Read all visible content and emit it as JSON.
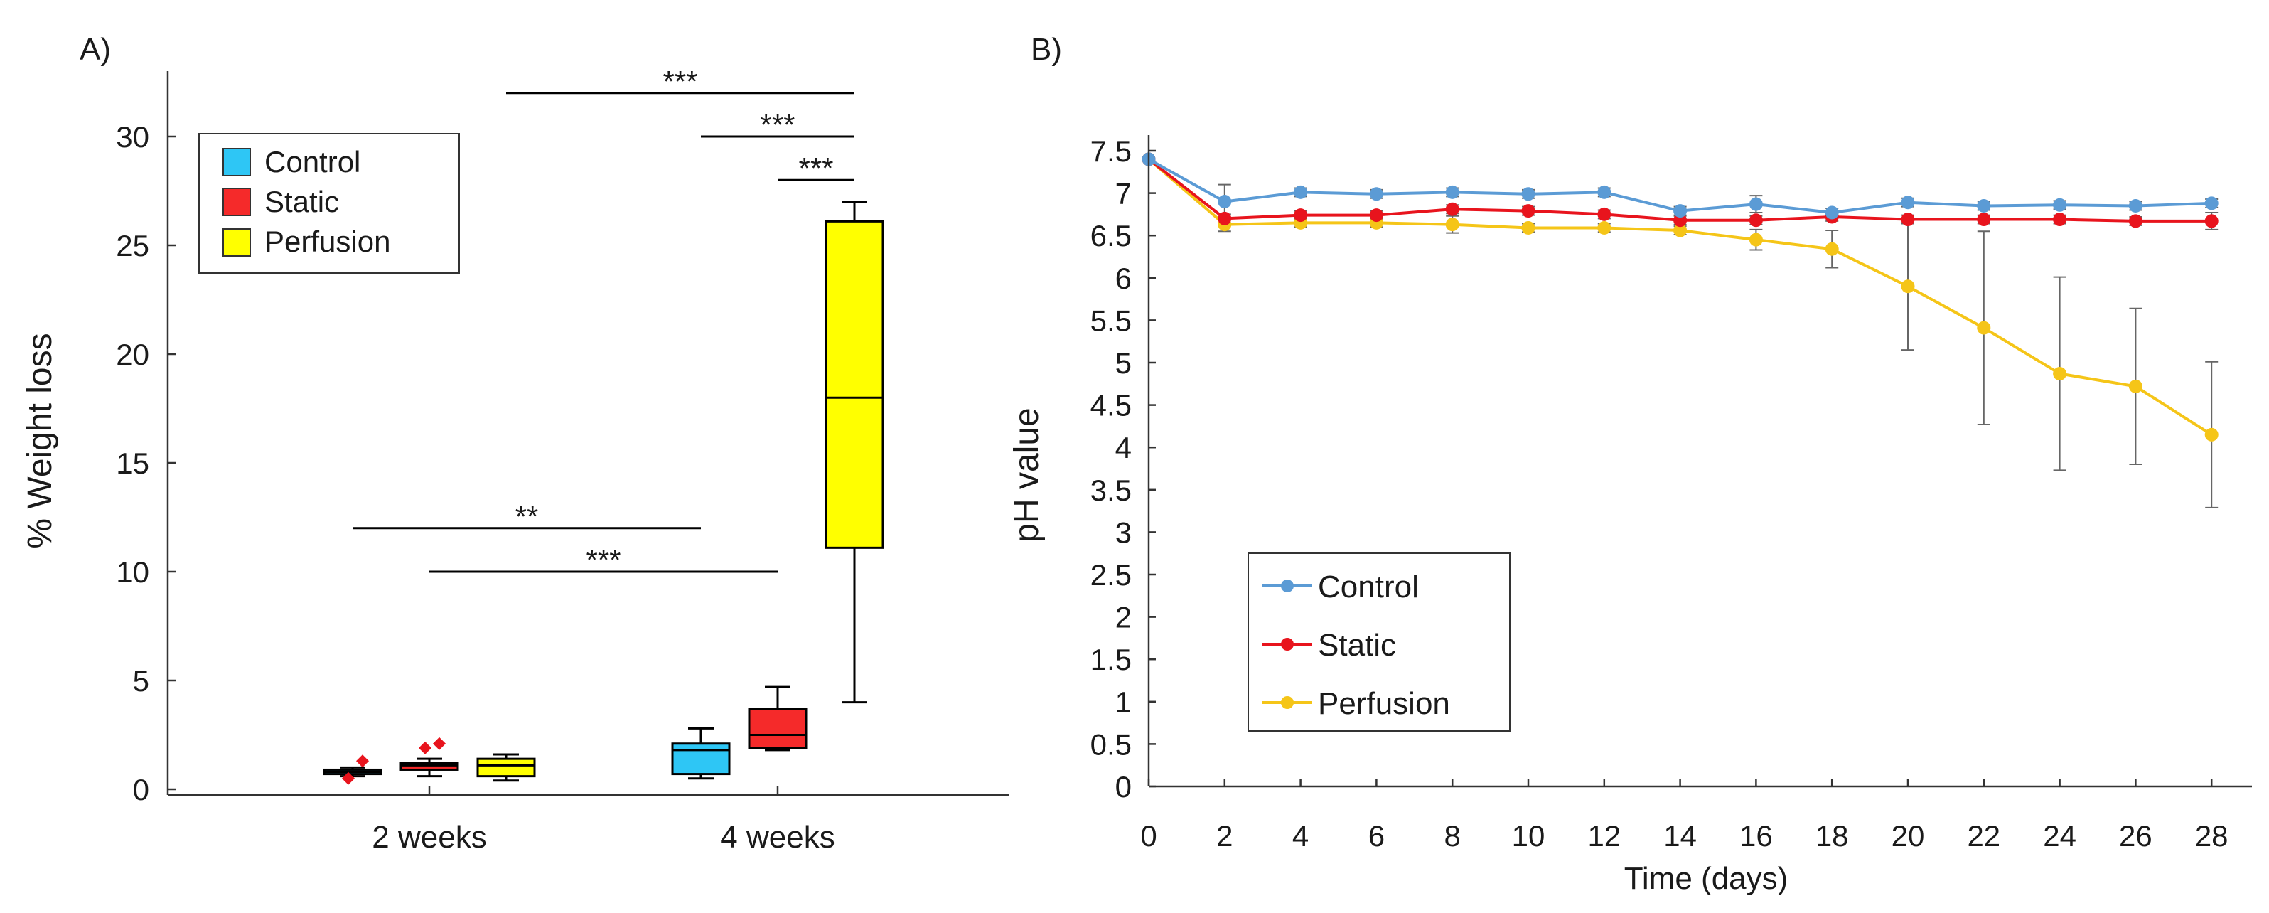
{
  "chart_data": [
    {
      "type": "box",
      "panel_label": "A)",
      "ylabel": "% Weight loss",
      "xlabel": "",
      "ylim": [
        0,
        33
      ],
      "yticks": [
        0,
        5,
        10,
        15,
        20,
        25,
        30
      ],
      "categories": [
        "2 weeks",
        "4 weeks"
      ],
      "legend": {
        "position": "top-left",
        "entries": [
          {
            "label": "Control",
            "color": "#2ec6f5"
          },
          {
            "label": "Static",
            "color": "#f52a2a"
          },
          {
            "label": "Perfusion",
            "color": "#ffff00"
          }
        ]
      },
      "boxes": [
        {
          "group": "2 weeks",
          "series": "Control",
          "color": "#2ec6f5",
          "whisker_low": 0.6,
          "q1": 0.7,
          "median": 0.8,
          "q3": 0.9,
          "whisker_high": 1.0,
          "outliers": [
            0.5,
            1.3
          ]
        },
        {
          "group": "2 weeks",
          "series": "Static",
          "color": "#f52a2a",
          "whisker_low": 0.6,
          "q1": 0.9,
          "median": 1.1,
          "q3": 1.2,
          "whisker_high": 1.4,
          "outliers": [
            1.9,
            2.1
          ]
        },
        {
          "group": "2 weeks",
          "series": "Perfusion",
          "color": "#ffff00",
          "whisker_low": 0.4,
          "q1": 0.6,
          "median": 1.1,
          "q3": 1.4,
          "whisker_high": 1.6,
          "outliers": []
        },
        {
          "group": "4 weeks",
          "series": "Control",
          "color": "#2ec6f5",
          "whisker_low": 0.5,
          "q1": 0.7,
          "median": 1.8,
          "q3": 2.1,
          "whisker_high": 2.8,
          "outliers": []
        },
        {
          "group": "4 weeks",
          "series": "Static",
          "color": "#f52a2a",
          "whisker_low": 1.8,
          "q1": 1.9,
          "median": 2.5,
          "q3": 3.7,
          "whisker_high": 4.7,
          "outliers": []
        },
        {
          "group": "4 weeks",
          "series": "Perfusion",
          "color": "#ffff00",
          "whisker_low": 4.0,
          "q1": 11.1,
          "median": 18.0,
          "q3": 26.1,
          "whisker_high": 27.0,
          "outliers": []
        }
      ],
      "significance": [
        {
          "from": "2 weeks Control",
          "to": "4 weeks Control",
          "y": 12.0,
          "label": "**"
        },
        {
          "from": "2 weeks Static",
          "to": "4 weeks Static",
          "y": 10.0,
          "label": "***"
        },
        {
          "from": "2 weeks Perfusion",
          "to": "4 weeks Perfusion",
          "y": 32.0,
          "label": "***"
        },
        {
          "from": "4 weeks Control",
          "to": "4 weeks Perfusion",
          "y": 30.0,
          "label": "***"
        },
        {
          "from": "4 weeks Static",
          "to": "4 weeks Perfusion",
          "y": 28.0,
          "label": "***"
        }
      ]
    },
    {
      "type": "line",
      "panel_label": "B)",
      "xlabel": "Time (days)",
      "ylabel": "pH value",
      "xlim": [
        0,
        29
      ],
      "ylim": [
        0,
        7.6
      ],
      "xticks": [
        0,
        2,
        4,
        6,
        8,
        10,
        12,
        14,
        16,
        18,
        20,
        22,
        24,
        26,
        28
      ],
      "yticks": [
        0,
        0.5,
        1,
        1.5,
        2,
        2.5,
        3,
        3.5,
        4,
        4.5,
        5,
        5.5,
        6,
        6.5,
        7,
        7.5
      ],
      "ytick_labels": [
        "0",
        "0.5",
        "1",
        "1.5",
        "2",
        "2.5",
        "3",
        "3.5",
        "4",
        "4.5",
        "5",
        "5.5",
        "6",
        "6.5",
        "7",
        "7.5"
      ],
      "legend": {
        "position": "bottom-left"
      },
      "x": [
        0,
        2,
        4,
        6,
        8,
        10,
        12,
        14,
        16,
        18,
        20,
        22,
        24,
        26,
        28
      ],
      "series": [
        {
          "name": "Control",
          "color": "#5b9bd5",
          "values": [
            7.4,
            6.9,
            7.01,
            6.99,
            7.01,
            6.99,
            7.01,
            6.79,
            6.87,
            6.77,
            6.89,
            6.85,
            6.86,
            6.85,
            6.88
          ],
          "errors": [
            0,
            0.2,
            0.05,
            0.05,
            0.05,
            0.05,
            0.05,
            0.05,
            0.1,
            0.05,
            0.05,
            0.05,
            0.05,
            0.05,
            0.05
          ]
        },
        {
          "name": "Static",
          "color": "#e8141d",
          "values": [
            7.4,
            6.7,
            6.74,
            6.74,
            6.81,
            6.79,
            6.75,
            6.68,
            6.68,
            6.72,
            6.69,
            6.69,
            6.69,
            6.67,
            6.67
          ],
          "errors": [
            0,
            0.05,
            0.05,
            0.05,
            0.05,
            0.05,
            0.05,
            0.05,
            0.05,
            0.05,
            0.05,
            0.05,
            0.05,
            0.05,
            0.1
          ]
        },
        {
          "name": "Perfusion",
          "color": "#f5c518",
          "values": [
            7.4,
            6.63,
            6.65,
            6.65,
            6.63,
            6.59,
            6.59,
            6.56,
            6.45,
            6.34,
            5.9,
            5.41,
            4.87,
            4.72,
            4.15
          ],
          "errors": [
            0,
            0.08,
            0.05,
            0.05,
            0.1,
            0.05,
            0.05,
            0.05,
            0.12,
            0.22,
            0.75,
            1.14,
            1.14,
            0.92,
            0.86
          ]
        }
      ]
    }
  ]
}
